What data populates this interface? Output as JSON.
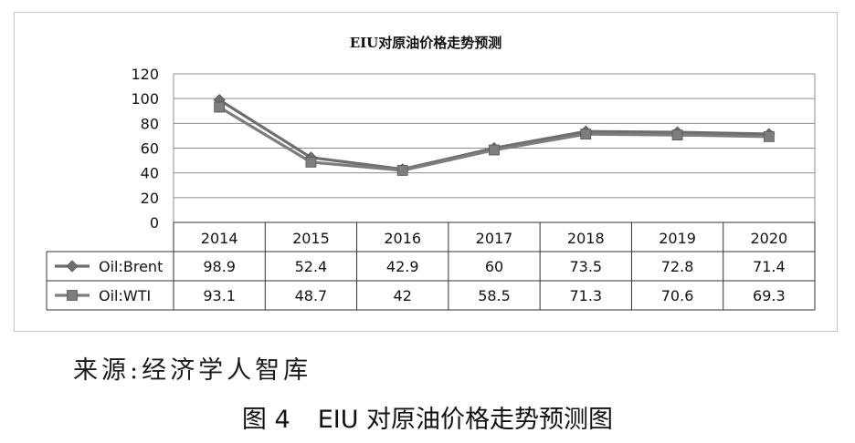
{
  "chart_data": {
    "type": "line",
    "title": "EIU对原油价格走势预测",
    "categories": [
      "2014",
      "2015",
      "2016",
      "2017",
      "2018",
      "2019",
      "2020"
    ],
    "ylim": [
      0,
      120
    ],
    "yticks": [
      "0",
      "20",
      "40",
      "60",
      "80",
      "100",
      "120"
    ],
    "grid": true,
    "legend": "table-rows-left",
    "series": [
      {
        "name": "Oil:Brent",
        "marker": "diamond",
        "color": "#6e6e6e",
        "values": [
          98.9,
          52.4,
          42.9,
          60,
          73.5,
          72.8,
          71.4
        ],
        "labels": [
          "98.9",
          "52.4",
          "42.9",
          "60",
          "73.5",
          "72.8",
          "71.4"
        ]
      },
      {
        "name": "Oil:WTI",
        "marker": "square",
        "color": "#7d7d7d",
        "values": [
          93.1,
          48.7,
          42,
          58.5,
          71.3,
          70.6,
          69.3
        ],
        "labels": [
          "93.1",
          "48.7",
          "42",
          "58.5",
          "71.3",
          "70.6",
          "69.3"
        ]
      }
    ]
  },
  "source": "来源:经济学人智库",
  "caption": {
    "figure": "图 4",
    "text": "EIU 对原油价格走势预测图"
  }
}
